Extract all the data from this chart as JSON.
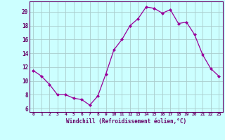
{
  "x": [
    0,
    1,
    2,
    3,
    4,
    5,
    6,
    7,
    8,
    9,
    10,
    11,
    12,
    13,
    14,
    15,
    16,
    17,
    18,
    19,
    20,
    21,
    22,
    23
  ],
  "y": [
    11.5,
    10.7,
    9.5,
    8.0,
    8.0,
    7.5,
    7.3,
    6.5,
    7.8,
    11.0,
    14.5,
    16.0,
    18.0,
    19.0,
    20.7,
    20.5,
    19.8,
    20.3,
    18.3,
    18.5,
    16.7,
    13.8,
    11.8,
    10.7
  ],
  "line_color": "#990099",
  "marker": "D",
  "marker_size": 2,
  "bg_color": "#ccffff",
  "grid_color": "#aacccc",
  "xlabel": "Windchill (Refroidissement éolien,°C)",
  "xlabel_color": "#660066",
  "xtick_labels": [
    "0",
    "1",
    "2",
    "3",
    "4",
    "5",
    "6",
    "7",
    "8",
    "9",
    "10",
    "11",
    "12",
    "13",
    "14",
    "15",
    "16",
    "17",
    "18",
    "19",
    "20",
    "21",
    "22",
    "23"
  ],
  "ytick_values": [
    6,
    8,
    10,
    12,
    14,
    16,
    18,
    20
  ],
  "ylim": [
    5.5,
    21.5
  ],
  "xlim": [
    -0.5,
    23.5
  ],
  "tick_color": "#660066",
  "spine_color": "#660066"
}
